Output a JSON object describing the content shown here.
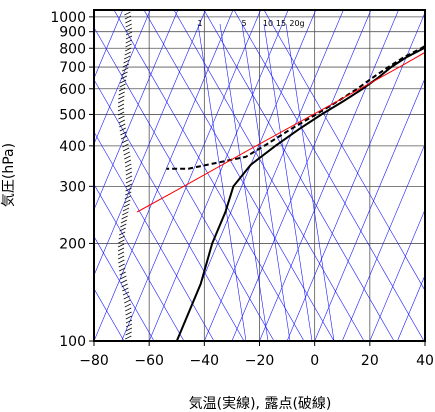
{
  "chart_data": {
    "type": "line",
    "chart_kind": "skew-T log-P",
    "xlabel": "気温(実線), 露点(破線)",
    "ylabel": "気圧(hPa)",
    "xlim": [
      -80,
      40
    ],
    "ylim": [
      1050,
      100
    ],
    "y_scale": "log",
    "x_ticks": [
      -80,
      -60,
      -40,
      -20,
      0,
      20,
      40
    ],
    "x_tick_labels": [
      "−80",
      "−60",
      "−40",
      "−20",
      "0",
      "20",
      "40"
    ],
    "y_ticks": [
      100,
      200,
      300,
      400,
      500,
      600,
      700,
      800,
      900,
      1000
    ],
    "y_tick_labels": [
      "100",
      "200",
      "300",
      "400",
      "500",
      "600",
      "700",
      "800",
      "900",
      "1000"
    ],
    "grid": true,
    "mixing_ratio_labels": [
      "1",
      "5",
      "10",
      "15",
      "20g"
    ],
    "series": [
      {
        "role": "temperature",
        "style": "solid",
        "color": "#000000",
        "points": [
          [
            1000,
            12
          ],
          [
            950,
            7
          ],
          [
            900,
            3
          ],
          [
            850,
            -1
          ],
          [
            800,
            -5
          ],
          [
            750,
            -10
          ],
          [
            700,
            -14
          ],
          [
            650,
            -17
          ],
          [
            600,
            -21
          ],
          [
            550,
            -26
          ],
          [
            500,
            -32
          ],
          [
            450,
            -38
          ],
          [
            400,
            -44
          ],
          [
            350,
            -50
          ],
          [
            300,
            -53
          ],
          [
            250,
            -52
          ],
          [
            200,
            -52
          ],
          [
            150,
            -50
          ],
          [
            100,
            -50
          ]
        ]
      },
      {
        "role": "dewpoint",
        "style": "dashed",
        "color": "#000000",
        "points": [
          [
            1000,
            11
          ],
          [
            950,
            6
          ],
          [
            900,
            2
          ],
          [
            850,
            -2
          ],
          [
            800,
            -6
          ],
          [
            750,
            -11
          ],
          [
            700,
            -15
          ],
          [
            650,
            -19
          ],
          [
            600,
            -23
          ],
          [
            550,
            -28
          ],
          [
            500,
            -34
          ],
          [
            450,
            -41
          ],
          [
            400,
            -48
          ],
          [
            370,
            -53
          ],
          [
            340,
            -72
          ],
          [
            340,
            -80
          ]
        ]
      },
      {
        "role": "parcel",
        "style": "solid",
        "color": "#ff0000",
        "points": [
          [
            1000,
            12
          ],
          [
            900,
            5
          ],
          [
            800,
            -2
          ],
          [
            700,
            -11
          ],
          [
            600,
            -22
          ],
          [
            500,
            -35
          ],
          [
            400,
            -51
          ],
          [
            300,
            -71
          ],
          [
            250,
            -84
          ]
        ]
      }
    ]
  }
}
